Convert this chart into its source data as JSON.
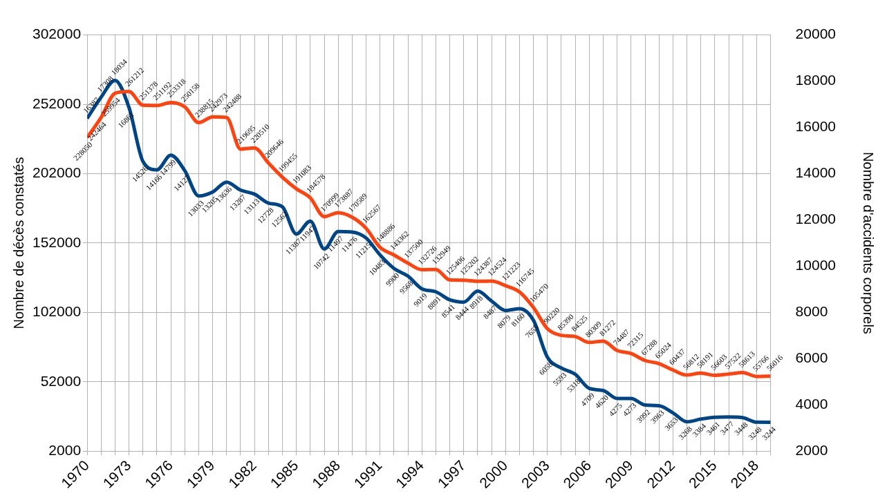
{
  "chart_data": {
    "type": "line",
    "ylabel": "Nombre de décès constatés",
    "y2label": "Nombre d'accidents corporels",
    "x": [
      1970,
      1971,
      1972,
      1973,
      1974,
      1975,
      1976,
      1977,
      1978,
      1979,
      1980,
      1981,
      1982,
      1983,
      1984,
      1985,
      1986,
      1987,
      1988,
      1989,
      1990,
      1991,
      1992,
      1993,
      1994,
      1995,
      1996,
      1997,
      1998,
      1999,
      2000,
      2001,
      2002,
      2003,
      2004,
      2005,
      2006,
      2007,
      2008,
      2009,
      2010,
      2011,
      2012,
      2013,
      2014,
      2015,
      2016,
      2017,
      2018,
      2019
    ],
    "xlim": [
      1970,
      2019
    ],
    "xticks": [
      1970,
      {
        "value": 1971,
        "label": null
      },
      {
        "value": 1972,
        "label": null
      },
      1973,
      {
        "value": 1974,
        "label": null
      },
      {
        "value": 1975,
        "label": null
      },
      1976,
      {
        "value": 1977,
        "label": null
      },
      {
        "value": 1978,
        "label": null
      },
      1979,
      {
        "value": 1980,
        "label": null
      },
      {
        "value": 1981,
        "label": null
      },
      1982,
      {
        "value": 1983,
        "label": null
      },
      {
        "value": 1984,
        "label": null
      },
      1985,
      {
        "value": 1986,
        "label": null
      },
      {
        "value": 1987,
        "label": null
      },
      1988,
      {
        "value": 1989,
        "label": null
      },
      {
        "value": 1990,
        "label": null
      },
      1991,
      {
        "value": 1992,
        "label": null
      },
      {
        "value": 1993,
        "label": null
      },
      1994,
      {
        "value": 1995,
        "label": null
      },
      {
        "value": 1996,
        "label": null
      },
      1997,
      {
        "value": 1998,
        "label": null
      },
      {
        "value": 1999,
        "label": null
      },
      2000,
      {
        "value": 2001,
        "label": null
      },
      {
        "value": 2002,
        "label": null
      },
      2003,
      {
        "value": 2004,
        "label": null
      },
      {
        "value": 2005,
        "label": null
      },
      2006,
      {
        "value": 2007,
        "label": null
      },
      {
        "value": 2008,
        "label": null
      },
      2009,
      {
        "value": 2010,
        "label": null
      },
      {
        "value": 2011,
        "label": null
      },
      2012,
      {
        "value": 2013,
        "label": null
      },
      {
        "value": 2014,
        "label": null
      },
      2015,
      {
        "value": 2016,
        "label": null
      },
      {
        "value": 2017,
        "label": null
      },
      2018,
      {
        "value": 2019,
        "label": null
      }
    ],
    "ylim": [
      2000,
      302000
    ],
    "yticks": [
      2000,
      52000,
      102000,
      152000,
      202000,
      252000,
      302000
    ],
    "y2lim": [
      2000,
      20000
    ],
    "y2ticks": [
      2000,
      4000,
      6000,
      8000,
      10000,
      12000,
      14000,
      16000,
      18000,
      20000
    ],
    "grid": true,
    "marker": "none",
    "data_labels": true,
    "series": [
      {
        "color": "#ff420e",
        "values": [
          228050,
          242464,
          259954,
          261212,
          251378,
          251192,
          253318,
          250158,
          238815,
          242973,
          242488,
          219695,
          220510,
          209646,
          199455,
          191083,
          184578,
          170999,
          173887,
          170589,
          162567,
          148886,
          143362,
          137500,
          132726,
          132949,
          125406,
          125202,
          124387,
          124524,
          121223,
          116745,
          105470,
          90220,
          85390,
          84525,
          80309,
          81272,
          74487,
          72315,
          67288,
          65024,
          60437,
          56812,
          58191,
          56603,
          57522,
          58613,
          55766,
          56016
        ]
      },
      {
        "color": "#004586",
        "axis": "y2",
        "values": [
          16387,
          17308,
          18034,
          16861,
          14526,
          14166,
          14799,
          14127,
          13033,
          13205,
          13636,
          13287,
          13113,
          12728,
          12562,
          11387,
          11947,
          10742,
          11497,
          11476,
          11215,
          10483,
          9900,
          9568,
          9019,
          8891,
          8541,
          8444,
          8918,
          8487,
          8079,
          8160,
          7655,
          6058,
          5593,
          5318,
          4709,
          4620,
          4275,
          4273,
          3992,
          3963,
          3653,
          3268,
          3384,
          3461,
          3477,
          3448,
          3248,
          3244
        ]
      }
    ]
  }
}
